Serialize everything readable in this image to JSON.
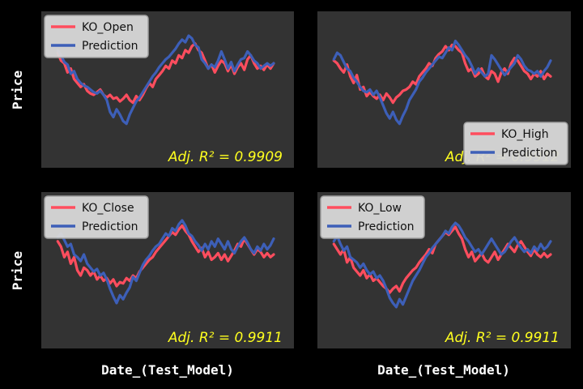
{
  "figure": {
    "background": "#000000",
    "panel_background": "#333333",
    "ylabel": "Price",
    "xlabel": "Date_(Test_Model)",
    "r2_color": "#ffff1f"
  },
  "chart_data": [
    {
      "type": "line",
      "r2_label": "Adj. R² = 0.9909",
      "legend_position": "upper-left",
      "series": [
        {
          "name": "KO_Open",
          "color": "#ff4d5e",
          "values": [
            0.78,
            0.72,
            0.7,
            0.63,
            0.66,
            0.58,
            0.55,
            0.52,
            0.54,
            0.49,
            0.47,
            0.46,
            0.48,
            0.5,
            0.46,
            0.44,
            0.46,
            0.43,
            0.44,
            0.41,
            0.43,
            0.46,
            0.42,
            0.4,
            0.45,
            0.42,
            0.46,
            0.51,
            0.55,
            0.52,
            0.58,
            0.61,
            0.64,
            0.68,
            0.66,
            0.72,
            0.7,
            0.76,
            0.74,
            0.8,
            0.78,
            0.83,
            0.85,
            0.8,
            0.78,
            0.72,
            0.66,
            0.69,
            0.63,
            0.68,
            0.72,
            0.7,
            0.64,
            0.69,
            0.62,
            0.67,
            0.7,
            0.65,
            0.73,
            0.76,
            0.7,
            0.66,
            0.68,
            0.65,
            0.69,
            0.66,
            0.7
          ]
        },
        {
          "name": "Prediction",
          "color": "#3d5fb8",
          "values": [
            0.8,
            0.76,
            0.71,
            0.69,
            0.62,
            0.64,
            0.58,
            0.55,
            0.53,
            0.52,
            0.5,
            0.48,
            0.47,
            0.49,
            0.46,
            0.42,
            0.33,
            0.29,
            0.35,
            0.31,
            0.26,
            0.24,
            0.31,
            0.36,
            0.41,
            0.44,
            0.48,
            0.52,
            0.56,
            0.6,
            0.63,
            0.67,
            0.7,
            0.73,
            0.75,
            0.78,
            0.81,
            0.85,
            0.88,
            0.86,
            0.91,
            0.89,
            0.84,
            0.82,
            0.73,
            0.7,
            0.66,
            0.69,
            0.67,
            0.72,
            0.79,
            0.73,
            0.66,
            0.71,
            0.64,
            0.69,
            0.73,
            0.74,
            0.79,
            0.76,
            0.72,
            0.7,
            0.66,
            0.68,
            0.7,
            0.68,
            0.7
          ]
        }
      ]
    },
    {
      "type": "line",
      "r2_label": "Adj. R² = 0.9912",
      "legend_position": "lower-right",
      "series": [
        {
          "name": "KO_High",
          "color": "#ff4d5e",
          "values": [
            0.72,
            0.7,
            0.66,
            0.63,
            0.69,
            0.6,
            0.55,
            0.61,
            0.5,
            0.52,
            0.45,
            0.48,
            0.45,
            0.43,
            0.46,
            0.42,
            0.47,
            0.44,
            0.4,
            0.44,
            0.46,
            0.49,
            0.5,
            0.52,
            0.56,
            0.54,
            0.6,
            0.63,
            0.66,
            0.7,
            0.68,
            0.74,
            0.77,
            0.79,
            0.83,
            0.8,
            0.84,
            0.83,
            0.8,
            0.78,
            0.7,
            0.64,
            0.66,
            0.6,
            0.62,
            0.66,
            0.6,
            0.58,
            0.64,
            0.62,
            0.56,
            0.63,
            0.66,
            0.62,
            0.7,
            0.74,
            0.72,
            0.68,
            0.64,
            0.62,
            0.58,
            0.62,
            0.6,
            0.64,
            0.58,
            0.62,
            0.6
          ]
        },
        {
          "name": "Prediction",
          "color": "#3d5fb8",
          "values": [
            0.73,
            0.78,
            0.76,
            0.71,
            0.66,
            0.64,
            0.59,
            0.56,
            0.52,
            0.49,
            0.48,
            0.5,
            0.46,
            0.49,
            0.44,
            0.38,
            0.32,
            0.28,
            0.33,
            0.27,
            0.24,
            0.3,
            0.35,
            0.42,
            0.46,
            0.5,
            0.56,
            0.59,
            0.63,
            0.66,
            0.69,
            0.72,
            0.75,
            0.74,
            0.78,
            0.82,
            0.8,
            0.87,
            0.84,
            0.8,
            0.76,
            0.73,
            0.68,
            0.62,
            0.66,
            0.63,
            0.6,
            0.62,
            0.76,
            0.73,
            0.69,
            0.65,
            0.61,
            0.64,
            0.67,
            0.7,
            0.76,
            0.73,
            0.68,
            0.65,
            0.64,
            0.62,
            0.64,
            0.6,
            0.64,
            0.67,
            0.72
          ]
        }
      ]
    },
    {
      "type": "line",
      "r2_label": "Adj. R² = 0.9911",
      "legend_position": "upper-left",
      "series": [
        {
          "name": "KO_Close",
          "color": "#ff4d5e",
          "values": [
            0.72,
            0.68,
            0.6,
            0.64,
            0.55,
            0.6,
            0.5,
            0.46,
            0.52,
            0.5,
            0.46,
            0.49,
            0.43,
            0.46,
            0.42,
            0.44,
            0.4,
            0.43,
            0.38,
            0.41,
            0.4,
            0.44,
            0.42,
            0.46,
            0.44,
            0.49,
            0.52,
            0.55,
            0.58,
            0.6,
            0.64,
            0.67,
            0.7,
            0.73,
            0.76,
            0.79,
            0.77,
            0.81,
            0.84,
            0.8,
            0.77,
            0.72,
            0.68,
            0.64,
            0.67,
            0.6,
            0.64,
            0.58,
            0.6,
            0.63,
            0.58,
            0.62,
            0.57,
            0.61,
            0.65,
            0.7,
            0.68,
            0.74,
            0.7,
            0.66,
            0.62,
            0.66,
            0.64,
            0.6,
            0.63,
            0.6,
            0.62
          ]
        },
        {
          "name": "Prediction",
          "color": "#3d5fb8",
          "values": [
            0.75,
            0.78,
            0.73,
            0.68,
            0.7,
            0.62,
            0.6,
            0.57,
            0.62,
            0.55,
            0.52,
            0.49,
            0.51,
            0.46,
            0.48,
            0.43,
            0.36,
            0.3,
            0.25,
            0.31,
            0.28,
            0.33,
            0.37,
            0.45,
            0.42,
            0.48,
            0.54,
            0.58,
            0.61,
            0.65,
            0.68,
            0.7,
            0.74,
            0.78,
            0.76,
            0.82,
            0.8,
            0.85,
            0.88,
            0.84,
            0.78,
            0.76,
            0.72,
            0.69,
            0.65,
            0.7,
            0.66,
            0.72,
            0.68,
            0.74,
            0.7,
            0.66,
            0.72,
            0.66,
            0.63,
            0.68,
            0.72,
            0.75,
            0.71,
            0.66,
            0.63,
            0.68,
            0.65,
            0.7,
            0.66,
            0.69,
            0.74
          ]
        }
      ]
    },
    {
      "type": "line",
      "r2_label": "Adj. R² = 0.9911",
      "legend_position": "upper-left",
      "series": [
        {
          "name": "KO_Low",
          "color": "#ff4d5e",
          "values": [
            0.7,
            0.66,
            0.62,
            0.66,
            0.56,
            0.6,
            0.52,
            0.49,
            0.46,
            0.5,
            0.44,
            0.47,
            0.42,
            0.44,
            0.41,
            0.38,
            0.36,
            0.33,
            0.36,
            0.38,
            0.34,
            0.4,
            0.44,
            0.47,
            0.5,
            0.52,
            0.56,
            0.59,
            0.62,
            0.66,
            0.63,
            0.7,
            0.73,
            0.76,
            0.79,
            0.77,
            0.8,
            0.83,
            0.78,
            0.74,
            0.66,
            0.6,
            0.64,
            0.57,
            0.6,
            0.63,
            0.58,
            0.56,
            0.6,
            0.64,
            0.58,
            0.62,
            0.66,
            0.7,
            0.67,
            0.64,
            0.69,
            0.72,
            0.68,
            0.64,
            0.61,
            0.66,
            0.62,
            0.6,
            0.63,
            0.6,
            0.62
          ]
        },
        {
          "name": "Prediction",
          "color": "#3d5fb8",
          "values": [
            0.72,
            0.76,
            0.7,
            0.65,
            0.68,
            0.6,
            0.58,
            0.56,
            0.52,
            0.55,
            0.5,
            0.47,
            0.49,
            0.44,
            0.46,
            0.42,
            0.36,
            0.29,
            0.25,
            0.22,
            0.28,
            0.24,
            0.3,
            0.36,
            0.42,
            0.46,
            0.5,
            0.55,
            0.6,
            0.63,
            0.67,
            0.7,
            0.73,
            0.76,
            0.8,
            0.78,
            0.83,
            0.86,
            0.84,
            0.8,
            0.75,
            0.72,
            0.68,
            0.64,
            0.66,
            0.62,
            0.66,
            0.7,
            0.74,
            0.7,
            0.66,
            0.62,
            0.64,
            0.68,
            0.72,
            0.75,
            0.71,
            0.67,
            0.64,
            0.66,
            0.63,
            0.68,
            0.65,
            0.7,
            0.66,
            0.68,
            0.72
          ]
        }
      ]
    }
  ]
}
